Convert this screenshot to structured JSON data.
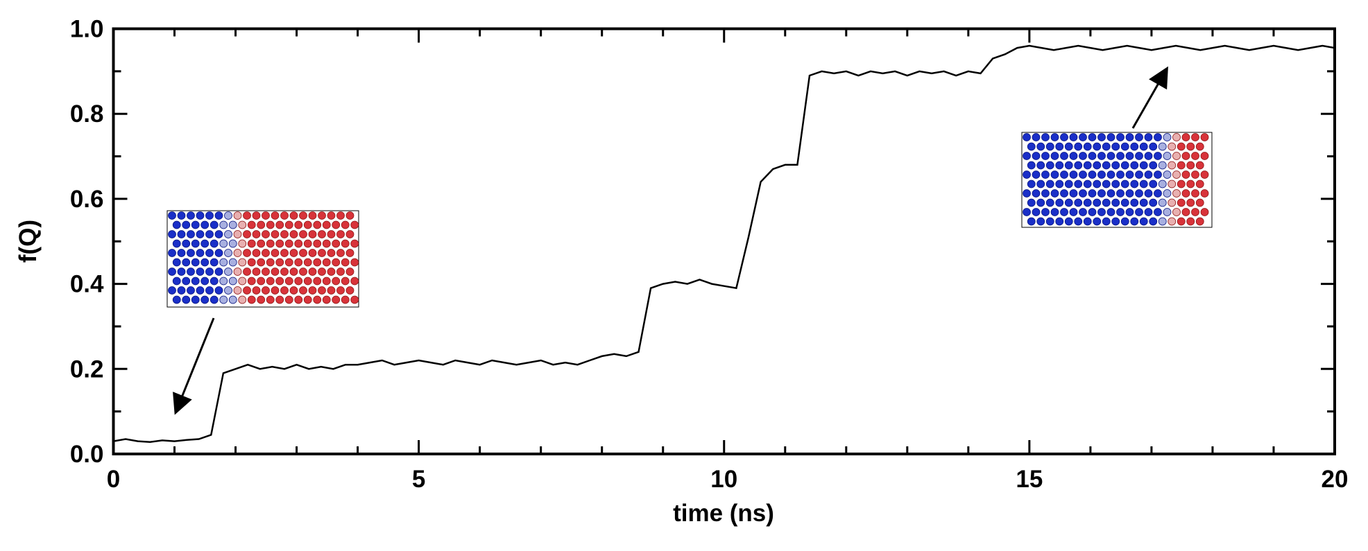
{
  "chart_data": {
    "type": "line",
    "xlabel": "time (ns)",
    "ylabel": "f(Q)",
    "xlim": [
      0,
      20
    ],
    "ylim": [
      0,
      1
    ],
    "xticks": [
      0,
      5,
      10,
      15,
      20
    ],
    "xminorticks": [
      1,
      2,
      3,
      4,
      6,
      7,
      8,
      9,
      11,
      12,
      13,
      14,
      16,
      17,
      18,
      19
    ],
    "yticks": [
      {
        "value": 0,
        "label": "0.0"
      },
      0.2,
      0.4,
      0.6,
      0.8,
      {
        "value": 1,
        "label": "1.0"
      }
    ],
    "yminorticks": [
      0.1,
      0.3,
      0.5,
      0.7,
      0.9
    ],
    "series": [
      {
        "color": "#000000",
        "x": [
          0,
          0.2,
          0.4,
          0.6,
          0.8,
          1,
          1.2,
          1.4,
          1.6,
          1.8,
          2,
          2.2,
          2.4,
          2.6,
          2.8,
          3,
          3.2,
          3.4,
          3.6,
          3.8,
          4,
          4.2,
          4.4,
          4.6,
          4.8,
          5,
          5.2,
          5.4,
          5.6,
          5.8,
          6,
          6.2,
          6.4,
          6.6,
          6.8,
          7,
          7.2,
          7.4,
          7.6,
          7.8,
          8,
          8.2,
          8.4,
          8.6,
          8.8,
          9,
          9.2,
          9.4,
          9.6,
          9.8,
          10,
          10.2,
          10.4,
          10.6,
          10.8,
          11,
          11.2,
          11.4,
          11.6,
          11.8,
          12,
          12.2,
          12.4,
          12.6,
          12.8,
          13,
          13.2,
          13.4,
          13.6,
          13.8,
          14,
          14.2,
          14.4,
          14.6,
          14.8,
          15,
          15.2,
          15.4,
          15.6,
          15.8,
          16,
          16.2,
          16.4,
          16.6,
          16.8,
          17,
          17.2,
          17.4,
          17.6,
          17.8,
          18,
          18.2,
          18.4,
          18.6,
          18.8,
          19,
          19.2,
          19.4,
          19.6,
          19.8,
          20
        ],
        "values": [
          0.03,
          0.035,
          0.03,
          0.028,
          0.032,
          0.03,
          0.033,
          0.035,
          0.045,
          0.19,
          0.2,
          0.21,
          0.2,
          0.205,
          0.2,
          0.21,
          0.2,
          0.205,
          0.2,
          0.21,
          0.21,
          0.215,
          0.22,
          0.21,
          0.215,
          0.22,
          0.215,
          0.21,
          0.22,
          0.215,
          0.21,
          0.22,
          0.215,
          0.21,
          0.215,
          0.22,
          0.21,
          0.215,
          0.21,
          0.22,
          0.23,
          0.235,
          0.23,
          0.24,
          0.39,
          0.4,
          0.405,
          0.4,
          0.41,
          0.4,
          0.395,
          0.39,
          0.51,
          0.64,
          0.67,
          0.68,
          0.68,
          0.89,
          0.9,
          0.895,
          0.9,
          0.89,
          0.9,
          0.895,
          0.9,
          0.89,
          0.9,
          0.895,
          0.9,
          0.89,
          0.9,
          0.895,
          0.93,
          0.94,
          0.955,
          0.96,
          0.955,
          0.95,
          0.955,
          0.96,
          0.955,
          0.95,
          0.955,
          0.96,
          0.955,
          0.95,
          0.955,
          0.96,
          0.955,
          0.95,
          0.955,
          0.96,
          0.955,
          0.95,
          0.955,
          0.96,
          0.955,
          0.95,
          0.955,
          0.96,
          0.955
        ]
      }
    ]
  }
}
